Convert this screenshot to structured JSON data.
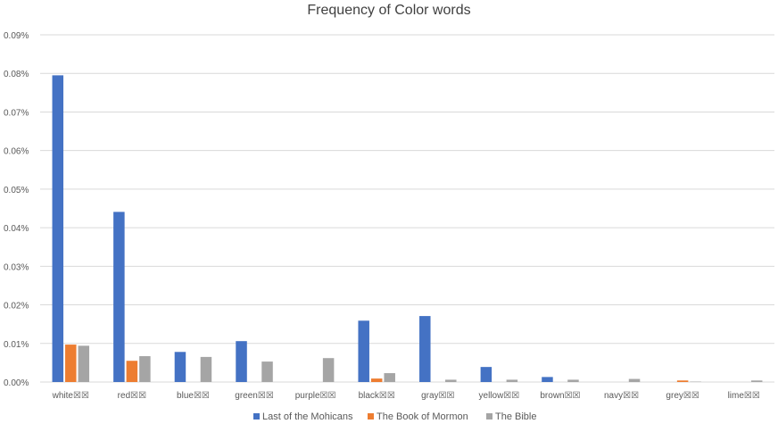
{
  "chart_data": {
    "type": "bar",
    "title": "Frequency of Color words",
    "xlabel": "",
    "ylabel": "",
    "ylim": [
      0,
      0.09
    ],
    "y_ticks": [
      "0.00%",
      "0.01%",
      "0.02%",
      "0.03%",
      "0.04%",
      "0.05%",
      "0.06%",
      "0.07%",
      "0.08%",
      "0.09%"
    ],
    "categories": [
      "white☒☒",
      "red☒☒",
      "blue☒☒",
      "green☒☒",
      "purple☒☒",
      "black☒☒",
      "gray☒☒",
      "yellow☒☒",
      "brown☒☒",
      "navy☒☒",
      "grey☒☒",
      "lime☒☒"
    ],
    "series": [
      {
        "name": "Last of the Mohicans",
        "color": "#4472C4",
        "values": [
          0.0795,
          0.0441,
          0.0078,
          0.0106,
          0.0,
          0.0159,
          0.0171,
          0.0039,
          0.0013,
          0.0,
          0.0,
          0.0
        ]
      },
      {
        "name": "The Book of Mormon",
        "color": "#ED7D31",
        "values": [
          0.0097,
          0.0055,
          0.0,
          0.0,
          0.0,
          0.0009,
          0.0,
          0.0,
          0.0,
          0.0,
          0.0004,
          0.0
        ]
      },
      {
        "name": "The Bible",
        "color": "#A5A5A5",
        "values": [
          0.0094,
          0.0067,
          0.0065,
          0.0053,
          0.0062,
          0.0023,
          0.0006,
          0.0006,
          0.0006,
          0.0008,
          0.0001,
          0.0004
        ]
      }
    ],
    "grid": true,
    "legend_position": "bottom"
  }
}
